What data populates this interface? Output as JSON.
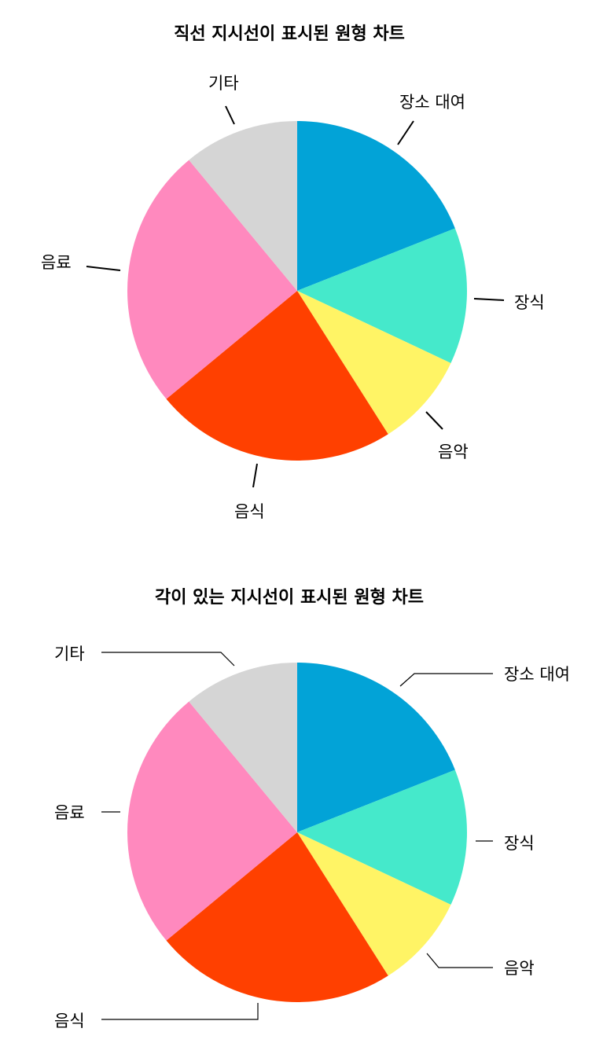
{
  "chart_data": [
    {
      "type": "pie",
      "title": "직선 지시선이 표시된 원형 차트",
      "leader_style": "straight",
      "slices": [
        {
          "label": "장소 대여",
          "value": 19,
          "color": "#02A3D7"
        },
        {
          "label": "장식",
          "value": 13,
          "color": "#45E9CB"
        },
        {
          "label": "음악",
          "value": 9,
          "color": "#FFF465"
        },
        {
          "label": "음식",
          "value": 23,
          "color": "#FF4000"
        },
        {
          "label": "음료",
          "value": 25,
          "color": "#FF89BE"
        },
        {
          "label": "기타",
          "value": 11,
          "color": "#D5D5D5"
        }
      ]
    },
    {
      "type": "pie",
      "title": "각이 있는 지시선이 표시된 원형 차트",
      "leader_style": "angled",
      "slices": [
        {
          "label": "장소 대여",
          "value": 19,
          "color": "#02A3D7"
        },
        {
          "label": "장식",
          "value": 13,
          "color": "#45E9CB"
        },
        {
          "label": "음악",
          "value": 9,
          "color": "#FFF465"
        },
        {
          "label": "음식",
          "value": 23,
          "color": "#FF4000"
        },
        {
          "label": "음료",
          "value": 25,
          "color": "#FF89BE"
        },
        {
          "label": "기타",
          "value": 11,
          "color": "#D5D5D5"
        }
      ]
    }
  ]
}
